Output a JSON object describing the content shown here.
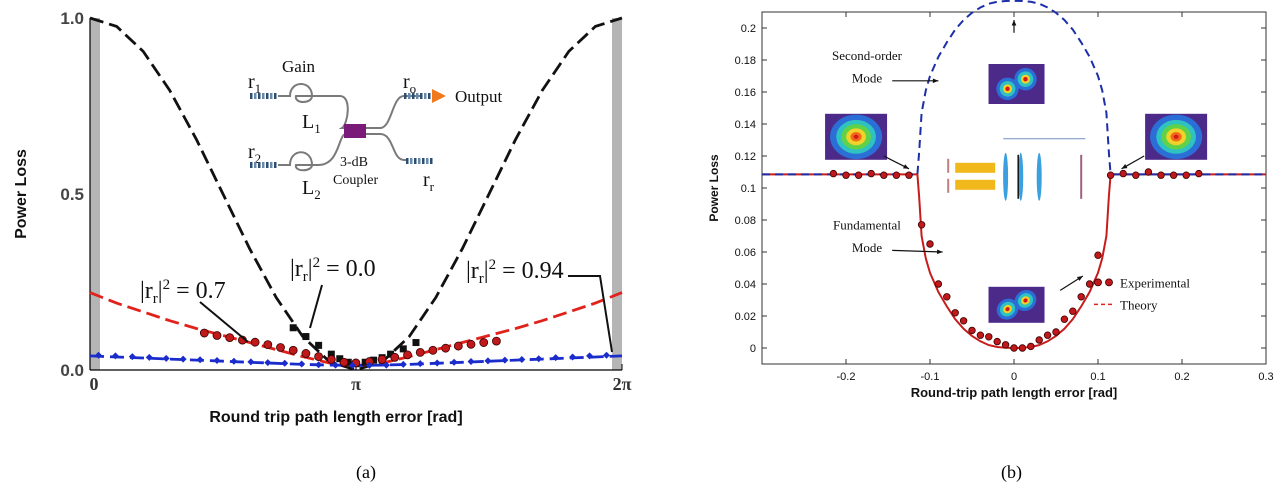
{
  "chart_data": [
    {
      "type": "line",
      "panel_caption": "(a)",
      "xlabel": "Round trip path length error [rad]",
      "ylabel": "Power Loss",
      "xlim": [
        0,
        6.2832
      ],
      "ylim": [
        0,
        1.0
      ],
      "y_ticks": [
        "0.0",
        "0.5",
        "1.0"
      ],
      "x_ticks": [
        {
          "value": 0,
          "label": "0"
        },
        {
          "value": 3.1416,
          "label": "π"
        },
        {
          "value": 6.2832,
          "label": "2π"
        }
      ],
      "grid": false,
      "series": [
        {
          "name": "|r_r|² = 0.0",
          "color": "#111111",
          "style": "dashed",
          "x": [
            0,
            0.314,
            0.628,
            0.942,
            1.257,
            1.571,
            1.885,
            2.199,
            2.513,
            2.827,
            3.142,
            3.456,
            3.77,
            4.084,
            4.398,
            4.712,
            5.027,
            5.341,
            5.655,
            5.969,
            6.283
          ],
          "y": [
            1.0,
            0.976,
            0.905,
            0.794,
            0.655,
            0.5,
            0.345,
            0.206,
            0.095,
            0.024,
            0.0,
            0.024,
            0.095,
            0.206,
            0.345,
            0.5,
            0.655,
            0.794,
            0.905,
            0.976,
            1.0
          ]
        },
        {
          "name": "|r_r|² = 0.7",
          "color": "#e0221b",
          "style": "dashed",
          "x": [
            0,
            0.314,
            0.628,
            0.942,
            1.257,
            1.571,
            1.885,
            2.199,
            2.513,
            2.827,
            3.142,
            3.456,
            3.77,
            4.084,
            4.398,
            4.712,
            5.027,
            5.341,
            5.655,
            5.969,
            6.283
          ],
          "y": [
            0.22,
            0.19,
            0.165,
            0.14,
            0.118,
            0.098,
            0.078,
            0.058,
            0.038,
            0.02,
            0.012,
            0.02,
            0.038,
            0.058,
            0.078,
            0.098,
            0.118,
            0.14,
            0.165,
            0.19,
            0.22
          ]
        },
        {
          "name": "|r_r|² = 0.94",
          "color": "#1a2ccc",
          "style": "dashed",
          "x": [
            0,
            0.314,
            0.628,
            0.942,
            1.257,
            1.571,
            1.885,
            2.199,
            2.513,
            2.827,
            3.142,
            3.456,
            3.77,
            4.084,
            4.398,
            4.712,
            5.027,
            5.341,
            5.655,
            5.969,
            6.283
          ],
          "y": [
            0.04,
            0.037,
            0.034,
            0.031,
            0.028,
            0.025,
            0.022,
            0.019,
            0.016,
            0.014,
            0.013,
            0.014,
            0.016,
            0.019,
            0.022,
            0.025,
            0.028,
            0.031,
            0.034,
            0.037,
            0.04
          ]
        }
      ],
      "markers": [
        {
          "name": "|r_r|² = 0.0 points",
          "color": "#111111",
          "shape": "square",
          "x": [
            2.4,
            2.55,
            2.7,
            2.85,
            2.95,
            3.05,
            3.14,
            3.25,
            3.35,
            3.45,
            3.55,
            3.7,
            3.85
          ],
          "y": [
            0.12,
            0.095,
            0.07,
            0.045,
            0.032,
            0.022,
            0.018,
            0.022,
            0.028,
            0.035,
            0.045,
            0.06,
            0.078
          ]
        },
        {
          "name": "|r_r|² = 0.7 points",
          "color": "#c0181b",
          "shape": "circle",
          "x": [
            1.35,
            1.5,
            1.65,
            1.8,
            1.95,
            2.1,
            2.25,
            2.4,
            2.55,
            2.7,
            2.85,
            3.0,
            3.14,
            3.3,
            3.45,
            3.6,
            3.75,
            3.9,
            4.05,
            4.2,
            4.35,
            4.5,
            4.65,
            4.8
          ],
          "y": [
            0.105,
            0.098,
            0.092,
            0.085,
            0.079,
            0.072,
            0.064,
            0.056,
            0.047,
            0.038,
            0.03,
            0.022,
            0.02,
            0.024,
            0.03,
            0.036,
            0.043,
            0.05,
            0.056,
            0.062,
            0.068,
            0.073,
            0.078,
            0.082
          ]
        },
        {
          "name": "|r_r|² = 0.94 points",
          "color": "#1a2ccc",
          "shape": "diamond",
          "x": [
            0.1,
            0.3,
            0.5,
            0.7,
            0.9,
            1.1,
            1.3,
            1.5,
            1.7,
            1.9,
            2.1,
            2.3,
            2.5,
            2.7,
            2.9,
            3.1,
            3.3,
            3.5,
            3.7,
            3.9,
            4.1,
            4.3,
            4.5,
            4.7,
            4.9,
            5.1,
            5.3,
            5.5,
            5.7,
            5.9,
            6.1
          ],
          "y": [
            0.042,
            0.04,
            0.038,
            0.036,
            0.033,
            0.031,
            0.029,
            0.027,
            0.025,
            0.023,
            0.021,
            0.019,
            0.017,
            0.015,
            0.014,
            0.013,
            0.013,
            0.014,
            0.016,
            0.018,
            0.02,
            0.022,
            0.024,
            0.026,
            0.028,
            0.03,
            0.032,
            0.035,
            0.037,
            0.04,
            0.042
          ]
        }
      ],
      "annotations": {
        "label_07": "= 0.7",
        "label_00": "= 0.0",
        "label_094": "= 0.94",
        "r_prefix": "|r",
        "r_sub": "r",
        "r_sup": "2",
        "bar": "|"
      },
      "inset": {
        "gain": "Gain",
        "r1": "r",
        "r1_sub": "1",
        "r2": "r",
        "r2_sub": "2",
        "L1": "L",
        "L1_sub": "1",
        "L2": "L",
        "L2_sub": "2",
        "ro": "r",
        "ro_sub": "o",
        "rr": "r",
        "rr_sub": "r",
        "output": "Output",
        "coupler_line1": "3-dB",
        "coupler_line2": "Coupler"
      }
    },
    {
      "type": "line",
      "panel_caption": "(b)",
      "xlabel": "Round-trip path length error [rad]",
      "ylabel": "Power Loss",
      "xlim": [
        -0.3,
        0.3
      ],
      "ylim": [
        -0.01,
        0.21
      ],
      "x_ticks": [
        -0.2,
        -0.1,
        0,
        0.1,
        0.2,
        0.3
      ],
      "y_ticks": [
        0,
        0.02,
        0.04,
        0.06,
        0.08,
        0.1,
        0.12,
        0.14,
        0.16,
        0.18,
        0.2
      ],
      "grid": false,
      "legend": {
        "position": "right",
        "entries": [
          {
            "label": "Experimental",
            "color": "#c0181b",
            "shape": "circle"
          },
          {
            "label": "Theory",
            "color": "#e0221b",
            "style": "dashed"
          }
        ]
      },
      "series": [
        {
          "name": "Fundamental Mode theory",
          "color": "#c81c1c",
          "style": "solid",
          "x": [
            -0.3,
            -0.115,
            -0.113,
            -0.11,
            -0.105,
            -0.1,
            -0.09,
            -0.08,
            -0.07,
            -0.06,
            -0.05,
            -0.04,
            -0.03,
            -0.02,
            -0.01,
            0,
            0.01,
            0.02,
            0.03,
            0.04,
            0.05,
            0.06,
            0.07,
            0.08,
            0.09,
            0.1,
            0.105,
            0.11,
            0.113,
            0.115,
            0.3
          ],
          "y": [
            0.1085,
            0.1085,
            0.095,
            0.07,
            0.056,
            0.047,
            0.035,
            0.026,
            0.018,
            0.012,
            0.0075,
            0.0042,
            0.0018,
            0.0006,
            0.0001,
            0,
            0.0001,
            0.0006,
            0.0018,
            0.0042,
            0.0075,
            0.012,
            0.018,
            0.026,
            0.035,
            0.047,
            0.056,
            0.07,
            0.095,
            0.1085,
            0.1085
          ]
        },
        {
          "name": "Second-order Mode theory",
          "color": "#1c2fa8",
          "style": "dashed",
          "x": [
            -0.3,
            -0.115,
            -0.113,
            -0.11,
            -0.105,
            -0.1,
            -0.09,
            -0.08,
            -0.07,
            -0.06,
            -0.05,
            -0.04,
            -0.03,
            -0.02,
            -0.01,
            0,
            0.01,
            0.02,
            0.03,
            0.04,
            0.05,
            0.06,
            0.07,
            0.08,
            0.09,
            0.1,
            0.105,
            0.11,
            0.113,
            0.115,
            0.3
          ],
          "y": [
            0.1085,
            0.1085,
            0.122,
            0.147,
            0.161,
            0.17,
            0.182,
            0.191,
            0.199,
            0.205,
            0.2095,
            0.2128,
            0.2152,
            0.2164,
            0.2169,
            0.217,
            0.2169,
            0.2164,
            0.2152,
            0.2128,
            0.2095,
            0.205,
            0.199,
            0.191,
            0.182,
            0.17,
            0.161,
            0.147,
            0.122,
            0.1085,
            0.1085
          ]
        }
      ],
      "markers": [
        {
          "name": "Experimental",
          "color": "#c0181b",
          "shape": "circle",
          "x": [
            -0.215,
            -0.2,
            -0.185,
            -0.17,
            -0.155,
            -0.14,
            -0.125,
            -0.11,
            -0.1,
            -0.09,
            -0.08,
            -0.07,
            -0.06,
            -0.05,
            -0.04,
            -0.03,
            -0.02,
            -0.01,
            0,
            0.01,
            0.02,
            0.03,
            0.04,
            0.05,
            0.06,
            0.07,
            0.08,
            0.09,
            0.1,
            0.115,
            0.13,
            0.145,
            0.16,
            0.175,
            0.19,
            0.205,
            0.22
          ],
          "y": [
            0.109,
            0.108,
            0.108,
            0.109,
            0.108,
            0.108,
            0.108,
            0.077,
            0.065,
            0.04,
            0.032,
            0.022,
            0.017,
            0.011,
            0.008,
            0.007,
            0.004,
            0.002,
            0,
            0,
            0.001,
            0.005,
            0.008,
            0.01,
            0.018,
            0.023,
            0.032,
            0.04,
            0.058,
            0.108,
            0.109,
            0.108,
            0.11,
            0.108,
            0.108,
            0.108,
            0.109
          ]
        }
      ],
      "annotations": {
        "second_order_line1": "Second-order",
        "second_order_line2": "Mode",
        "fundamental_line1": "Fundamental",
        "fundamental_line2": "Mode"
      }
    }
  ]
}
